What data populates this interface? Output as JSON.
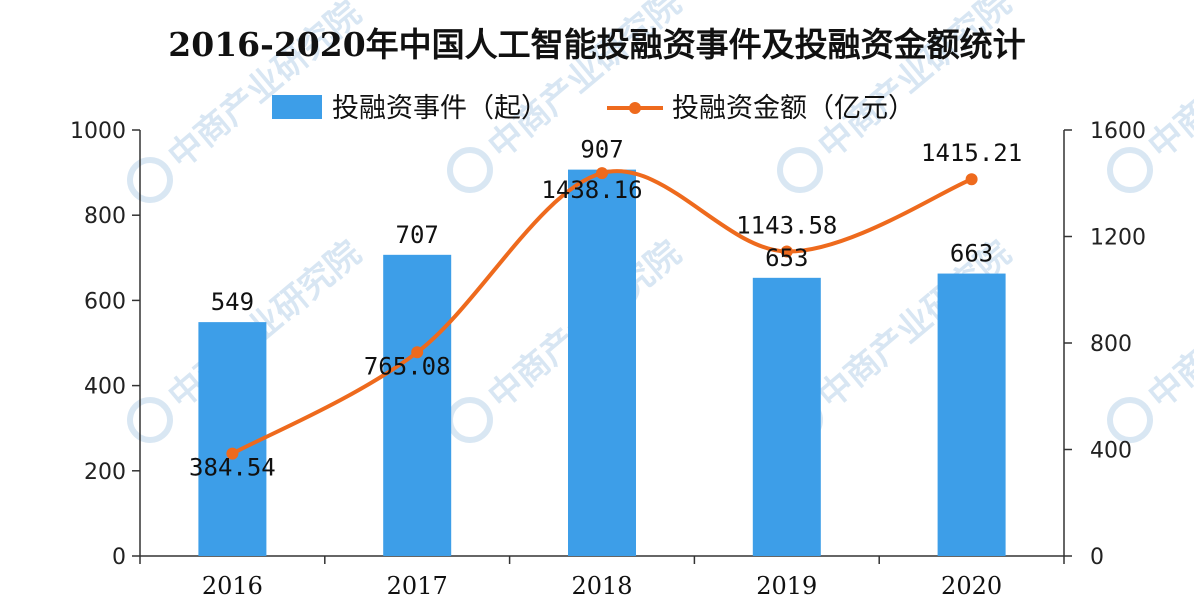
{
  "colors": {
    "bar": "#3d9ee8",
    "line": "#ee6a1d",
    "axis": "#333333",
    "watermark": "#b9d3ea"
  },
  "watermark_text": "中商产业研究院",
  "chart_data": {
    "type": "bar",
    "title": "2016-2020年中国人工智能投融资事件及投融资金额统计",
    "categories": [
      "2016",
      "2017",
      "2018",
      "2019",
      "2020"
    ],
    "series": [
      {
        "name": "投融资事件（起）",
        "type": "bar",
        "axis": "left",
        "values": [
          549,
          707,
          907,
          653,
          663
        ],
        "labels": [
          "549",
          "707",
          "907",
          "653",
          "663"
        ]
      },
      {
        "name": "投融资金额（亿元）",
        "type": "line",
        "axis": "right",
        "values": [
          384.54,
          765.08,
          1438.16,
          1143.58,
          1415.21
        ],
        "labels": [
          "384.54",
          "765.08",
          "1438.16",
          "1143.58",
          "1415.21"
        ]
      }
    ],
    "y_left": {
      "min": 0,
      "max": 1000,
      "ticks": [
        "0",
        "200",
        "400",
        "600",
        "800",
        "1000"
      ]
    },
    "y_right": {
      "min": 0,
      "max": 1600,
      "ticks": [
        "0",
        "400",
        "800",
        "1200",
        "1600"
      ]
    },
    "legend_position": "top-center",
    "grid": false
  }
}
